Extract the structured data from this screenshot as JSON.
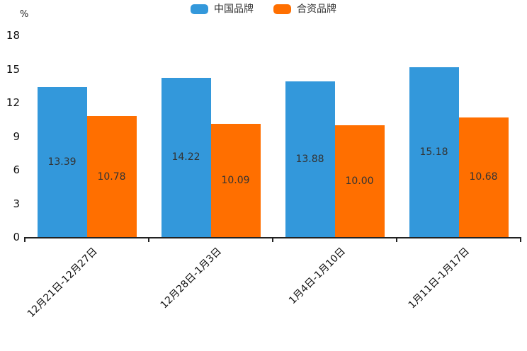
{
  "unit": "%",
  "chart_data": {
    "type": "bar",
    "title": "",
    "categories": [
      "12月21日-12月27日",
      "12月28日-1月3日",
      "1月4日-1月10日",
      "1月11日-1月17日"
    ],
    "series": [
      {
        "name": "中国品牌",
        "color": "#3398db",
        "values": [
          13.39,
          14.22,
          13.88,
          15.18
        ],
        "labels": [
          "13.39",
          "14.22",
          "13.88",
          "15.18"
        ]
      },
      {
        "name": "合资品牌",
        "color": "#ff6f00",
        "values": [
          10.78,
          10.09,
          10.0,
          10.68
        ],
        "labels": [
          "10.78",
          "10.09",
          "10.00",
          "10.68"
        ]
      }
    ],
    "xlabel": "",
    "ylabel": "%",
    "ylim": [
      0,
      18
    ],
    "yticks": [
      0,
      3,
      6,
      9,
      12,
      15,
      18
    ],
    "grid": false,
    "legend_position": "top",
    "value_labels": "inside-center",
    "x_tick_label_rotation": -45
  },
  "colors": {
    "axis": "#222222",
    "bar_value_label": "#333333",
    "tick_label": "#111111"
  }
}
